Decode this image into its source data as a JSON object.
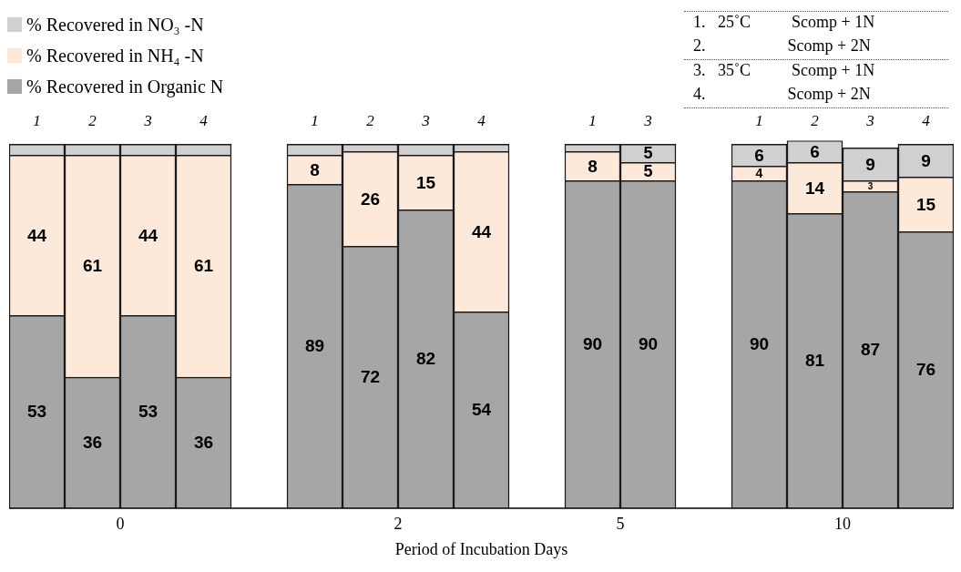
{
  "chart_data": {
    "type": "bar",
    "stacked": true,
    "xlabel": "Period of Incubation Days",
    "legend": "top left",
    "data_labels": false,
    "categories": [
      "1",
      "2",
      "3",
      "4",
      null,
      "1",
      "2",
      "3",
      "4",
      null,
      "1",
      "3",
      null,
      "1",
      "2",
      "3",
      "4"
    ],
    "series": [
      {
        "name": "% Recovered in Organic N",
        "color": "#a6a6a6",
        "values": [
          53,
          36,
          53,
          36,
          null,
          89,
          72,
          82,
          54,
          null,
          90,
          90,
          null,
          90,
          81,
          87,
          76
        ],
        "value_labels": [
          "53",
          "36",
          "53",
          "36",
          null,
          "89",
          "72",
          "82",
          "54",
          null,
          "90",
          "90",
          null,
          "90",
          "81",
          "87",
          "76"
        ]
      },
      {
        "name": "% Recovered in NH₄ -N",
        "color": "#fde9d9",
        "values": [
          44,
          61,
          44,
          61,
          null,
          8,
          26,
          15,
          44,
          null,
          8,
          5,
          null,
          4,
          14,
          3,
          15
        ],
        "value_labels": [
          "44",
          "61",
          "44",
          "61",
          null,
          "8",
          "26",
          "15",
          "44",
          null,
          "8",
          "5",
          null,
          "4",
          "14",
          "3",
          "15"
        ]
      },
      {
        "name": "% Recovered in NO₃ -N",
        "color": "#d0d0d0",
        "values": [
          3,
          3,
          3,
          3,
          null,
          3,
          2,
          3,
          2,
          null,
          2,
          5,
          null,
          6,
          6,
          9,
          9
        ],
        "value_labels": [
          null,
          null,
          null,
          null,
          null,
          null,
          null,
          null,
          null,
          null,
          null,
          "5",
          null,
          "6",
          "6",
          "9",
          "9"
        ]
      }
    ],
    "annotations": [
      "0",
      "2",
      "5",
      "10",
      "1.   25˚C          Scomp + 1N",
      "2.                    Scomp + 2N",
      "3.   35˚C          Scomp + 1N",
      "4.                    Scomp + 2N"
    ]
  }
}
